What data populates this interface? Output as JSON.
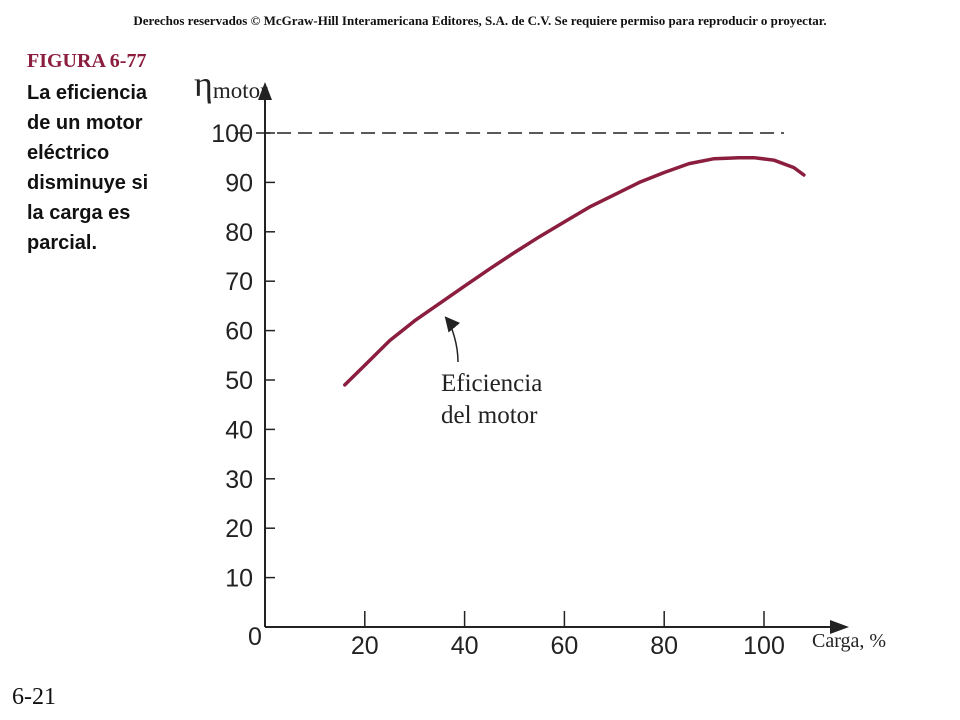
{
  "header": {
    "copyright": "Derechos reservados © McGraw-Hill Interamericana Editores, S.A. de C.V. Se requiere permiso para reproducir o proyectar."
  },
  "figure": {
    "title": "FIGURA 6-77",
    "caption": "La eficiencia\nde un motor\neléctrico\ndisminuye si\nla carga es\nparcial."
  },
  "page_number": "6-21",
  "colors": {
    "curve": "#8b1e3f",
    "title": "#8b1e3f",
    "axis": "#222222"
  },
  "chart_data": {
    "type": "line",
    "ylabel_symbol": "η",
    "ylabel_subscript": "motor",
    "xlabel": "Carga, %",
    "origin_label": "0",
    "xlim": [
      0,
      117
    ],
    "ylim": [
      0,
      108
    ],
    "xticks": [
      20,
      40,
      60,
      80,
      100
    ],
    "yticks": [
      10,
      20,
      30,
      40,
      50,
      60,
      70,
      80,
      90,
      100
    ],
    "grid": false,
    "reference_line": {
      "y": 100,
      "x_range": [
        -6,
        104
      ],
      "style": "dashed"
    },
    "annotation": {
      "lines": [
        "Eficiencia",
        "del motor"
      ],
      "points_to_x": 35
    },
    "series": [
      {
        "x": [
          16,
          20,
          25,
          30,
          35,
          40,
          45,
          50,
          55,
          60,
          65,
          70,
          75,
          80,
          85,
          90,
          95,
          98,
          102,
          106,
          108
        ],
        "y": [
          49,
          53,
          58,
          62,
          65.5,
          69,
          72.5,
          75.8,
          79,
          82,
          85,
          87.5,
          90,
          92,
          93.8,
          94.8,
          95,
          95,
          94.5,
          93,
          91.5
        ]
      }
    ]
  }
}
